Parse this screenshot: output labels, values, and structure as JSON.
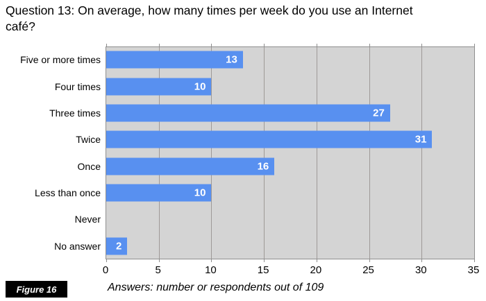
{
  "page": {
    "figure_label": "Figure 16"
  },
  "chart_data": {
    "type": "bar",
    "orientation": "horizontal",
    "title": "Question 13: On average, how many times per week do you use an Internet café?",
    "categories": [
      "Five or more times",
      "Four times",
      "Three times",
      "Twice",
      "Once",
      "Less than once",
      "Never",
      "No answer"
    ],
    "values": [
      13,
      10,
      27,
      31,
      16,
      10,
      0,
      2
    ],
    "xlabel": "Answers: number or respondents out of 109",
    "xlim": [
      0,
      35
    ],
    "x_ticks": [
      0,
      5,
      10,
      15,
      20,
      25,
      30,
      35
    ],
    "grid": true,
    "legend": "none",
    "value_labels": "white bold, inside right end of bar, hidden for zero values",
    "colors": {
      "bar": "#5890f0",
      "plot_background": "#d4d4d4",
      "gridline": "#9e9997",
      "plot_border": "#8e8e8e",
      "value_label_text": "#ffffff"
    }
  }
}
